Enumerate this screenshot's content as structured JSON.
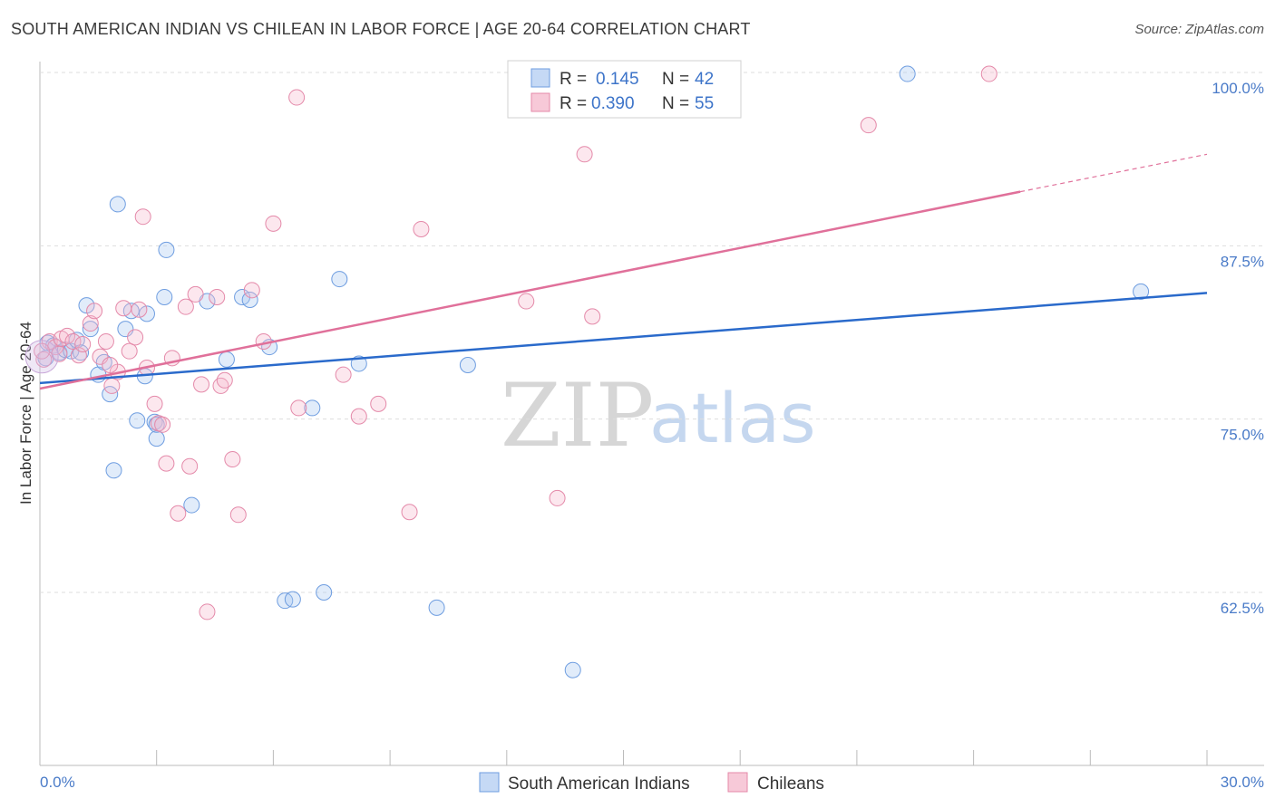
{
  "title": "SOUTH AMERICAN INDIAN VS CHILEAN IN LABOR FORCE | AGE 20-64 CORRELATION CHART",
  "source": "Source: ZipAtlas.com",
  "watermark": {
    "zip": "ZIP",
    "atlas": "atlas"
  },
  "legend": {
    "rows": [
      {
        "r_label": "R = ",
        "r_value": "0.145",
        "n_label": "N = ",
        "n_value": "42"
      },
      {
        "r_label": "R = ",
        "r_value": "0.390",
        "n_label": "N = ",
        "n_value": "55"
      }
    ]
  },
  "chart_data": {
    "type": "scatter",
    "title": "SOUTH AMERICAN INDIAN VS CHILEAN IN LABOR FORCE | AGE 20-64 CORRELATION CHART",
    "xlabel": "",
    "ylabel": "In Labor Force | Age 20-64",
    "xlim": [
      0,
      30
    ],
    "ylim": [
      50,
      102
    ],
    "x_tick_labels": [
      "0.0%",
      "30.0%"
    ],
    "y_ticks": [
      62.5,
      75.0,
      87.5,
      100.0
    ],
    "y_tick_labels": [
      "62.5%",
      "75.0%",
      "87.5%",
      "100.0%"
    ],
    "grid": true,
    "colors": {
      "South American Indians": "#5b8fd6",
      "Chileans": "#e07ca0",
      "blue_line": "#2a6acb",
      "pink_line": "#e0709a"
    },
    "series": [
      {
        "name": "South American Indians",
        "r": 0.145,
        "n": 42,
        "trend": {
          "x": [
            0,
            30
          ],
          "y": [
            77.6,
            84.1
          ]
        },
        "points": [
          [
            0.2,
            80.5
          ],
          [
            0.35,
            80.3
          ],
          [
            0.5,
            79.8
          ],
          [
            0.65,
            80.0
          ],
          [
            0.8,
            79.9
          ],
          [
            0.95,
            80.7
          ],
          [
            1.05,
            79.8
          ],
          [
            1.2,
            83.2
          ],
          [
            1.3,
            81.5
          ],
          [
            1.5,
            78.2
          ],
          [
            1.65,
            79.1
          ],
          [
            1.8,
            76.8
          ],
          [
            2.0,
            90.5
          ],
          [
            2.2,
            81.5
          ],
          [
            2.35,
            82.8
          ],
          [
            2.5,
            74.9
          ],
          [
            2.7,
            78.1
          ],
          [
            2.75,
            82.6
          ],
          [
            2.95,
            74.8
          ],
          [
            3.0,
            73.6
          ],
          [
            3.2,
            83.8
          ],
          [
            3.25,
            87.2
          ],
          [
            3.9,
            68.8
          ],
          [
            4.3,
            83.5
          ],
          [
            4.8,
            79.3
          ],
          [
            5.2,
            83.8
          ],
          [
            5.4,
            83.6
          ],
          [
            5.9,
            80.2
          ],
          [
            6.3,
            61.9
          ],
          [
            6.5,
            62.0
          ],
          [
            7.0,
            75.8
          ],
          [
            7.3,
            62.5
          ],
          [
            7.7,
            85.1
          ],
          [
            8.2,
            79.0
          ],
          [
            10.2,
            61.4
          ],
          [
            11.0,
            78.9
          ],
          [
            13.7,
            56.9
          ],
          [
            22.3,
            99.9
          ],
          [
            28.3,
            84.2
          ],
          [
            1.9,
            71.3
          ],
          [
            3.0,
            74.6
          ],
          [
            0.15,
            79.4
          ]
        ]
      },
      {
        "name": "Chileans",
        "r": 0.39,
        "n": 55,
        "trend": {
          "x": [
            0,
            25.2
          ],
          "y": [
            77.2,
            91.4
          ],
          "x_dashed": [
            25.2,
            30
          ],
          "y_dashed": [
            91.4,
            94.1
          ]
        },
        "points": [
          [
            0.1,
            79.3
          ],
          [
            0.25,
            80.6
          ],
          [
            0.4,
            80.2
          ],
          [
            0.55,
            80.8
          ],
          [
            0.7,
            81.0
          ],
          [
            0.85,
            80.6
          ],
          [
            1.0,
            79.6
          ],
          [
            1.1,
            80.4
          ],
          [
            1.3,
            81.9
          ],
          [
            1.4,
            82.8
          ],
          [
            1.55,
            79.5
          ],
          [
            1.7,
            80.6
          ],
          [
            1.85,
            77.4
          ],
          [
            2.0,
            78.4
          ],
          [
            2.15,
            83.0
          ],
          [
            2.3,
            79.9
          ],
          [
            2.45,
            80.9
          ],
          [
            2.55,
            82.9
          ],
          [
            2.65,
            89.6
          ],
          [
            2.75,
            78.7
          ],
          [
            2.95,
            76.1
          ],
          [
            3.05,
            74.7
          ],
          [
            3.15,
            74.6
          ],
          [
            3.25,
            71.8
          ],
          [
            3.4,
            79.4
          ],
          [
            3.55,
            68.2
          ],
          [
            3.75,
            83.1
          ],
          [
            3.85,
            71.6
          ],
          [
            4.0,
            84.0
          ],
          [
            4.15,
            77.5
          ],
          [
            4.3,
            61.1
          ],
          [
            4.55,
            83.8
          ],
          [
            4.65,
            77.4
          ],
          [
            4.75,
            77.8
          ],
          [
            4.95,
            72.1
          ],
          [
            5.1,
            68.1
          ],
          [
            5.45,
            84.3
          ],
          [
            5.75,
            80.6
          ],
          [
            6.0,
            89.1
          ],
          [
            6.65,
            75.8
          ],
          [
            6.6,
            98.2
          ],
          [
            7.8,
            78.2
          ],
          [
            8.2,
            75.2
          ],
          [
            8.7,
            76.1
          ],
          [
            9.5,
            68.3
          ],
          [
            9.8,
            88.7
          ],
          [
            12.5,
            83.5
          ],
          [
            13.3,
            69.3
          ],
          [
            14.0,
            94.1
          ],
          [
            14.2,
            82.4
          ],
          [
            21.3,
            96.2
          ],
          [
            24.4,
            99.9
          ],
          [
            0.05,
            79.9
          ],
          [
            1.8,
            78.9
          ],
          [
            0.5,
            79.7
          ]
        ]
      }
    ]
  },
  "bottom_legend": [
    {
      "label": "South American Indians"
    },
    {
      "label": "Chileans"
    }
  ]
}
